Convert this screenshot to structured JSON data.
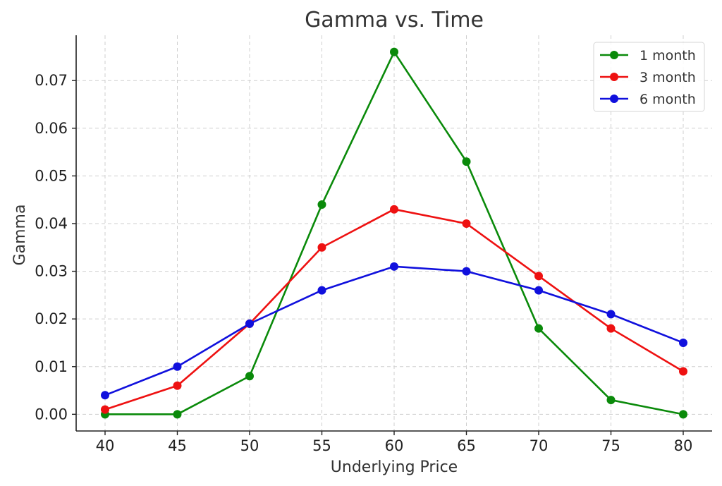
{
  "chart_data": {
    "type": "line",
    "title": "Gamma vs. Time",
    "xlabel": "Underlying Price",
    "ylabel": "Gamma",
    "x": [
      40,
      45,
      50,
      55,
      60,
      65,
      70,
      75,
      80
    ],
    "xlim": [
      38,
      82
    ],
    "ylim": [
      -0.0035,
      0.0795
    ],
    "xticks": [
      "40",
      "45",
      "50",
      "55",
      "60",
      "65",
      "70",
      "75",
      "80"
    ],
    "yticks": [
      "0.00",
      "0.01",
      "0.02",
      "0.03",
      "0.04",
      "0.05",
      "0.06",
      "0.07"
    ],
    "grid": true,
    "legend_position": "top-right",
    "series": [
      {
        "name": "1 month",
        "color": "#0a8a0a",
        "values": [
          0.0,
          0.0,
          0.008,
          0.044,
          0.076,
          0.053,
          0.018,
          0.003,
          0.0
        ]
      },
      {
        "name": "3 month",
        "color": "#ee1111",
        "values": [
          0.001,
          0.006,
          0.019,
          0.035,
          0.043,
          0.04,
          0.029,
          0.018,
          0.009
        ]
      },
      {
        "name": "6 month",
        "color": "#1010dd",
        "values": [
          0.004,
          0.01,
          0.019,
          0.026,
          0.031,
          0.03,
          0.026,
          0.021,
          0.015
        ]
      }
    ]
  }
}
